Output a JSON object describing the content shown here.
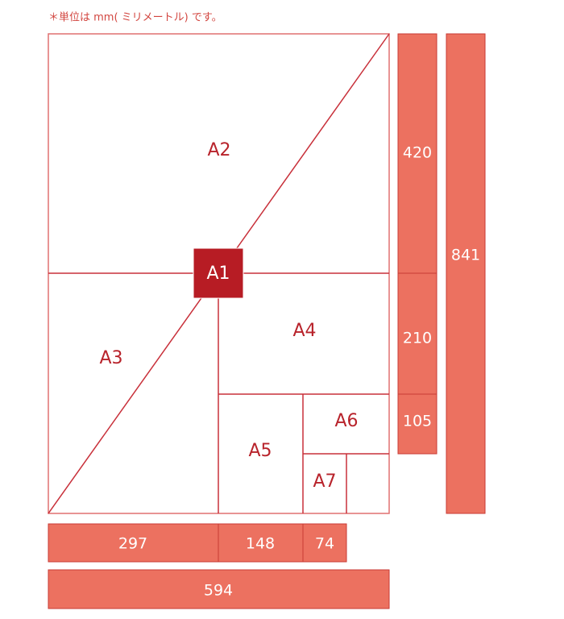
{
  "note": "＊単位は mm( ミリメートル) です。",
  "sheets": [
    "A1",
    "A2",
    "A3",
    "A4",
    "A5",
    "A6",
    "A7"
  ],
  "side_bars": [
    420,
    210,
    105,
    841
  ],
  "bottom_bars": [
    297,
    148,
    74,
    594
  ]
}
